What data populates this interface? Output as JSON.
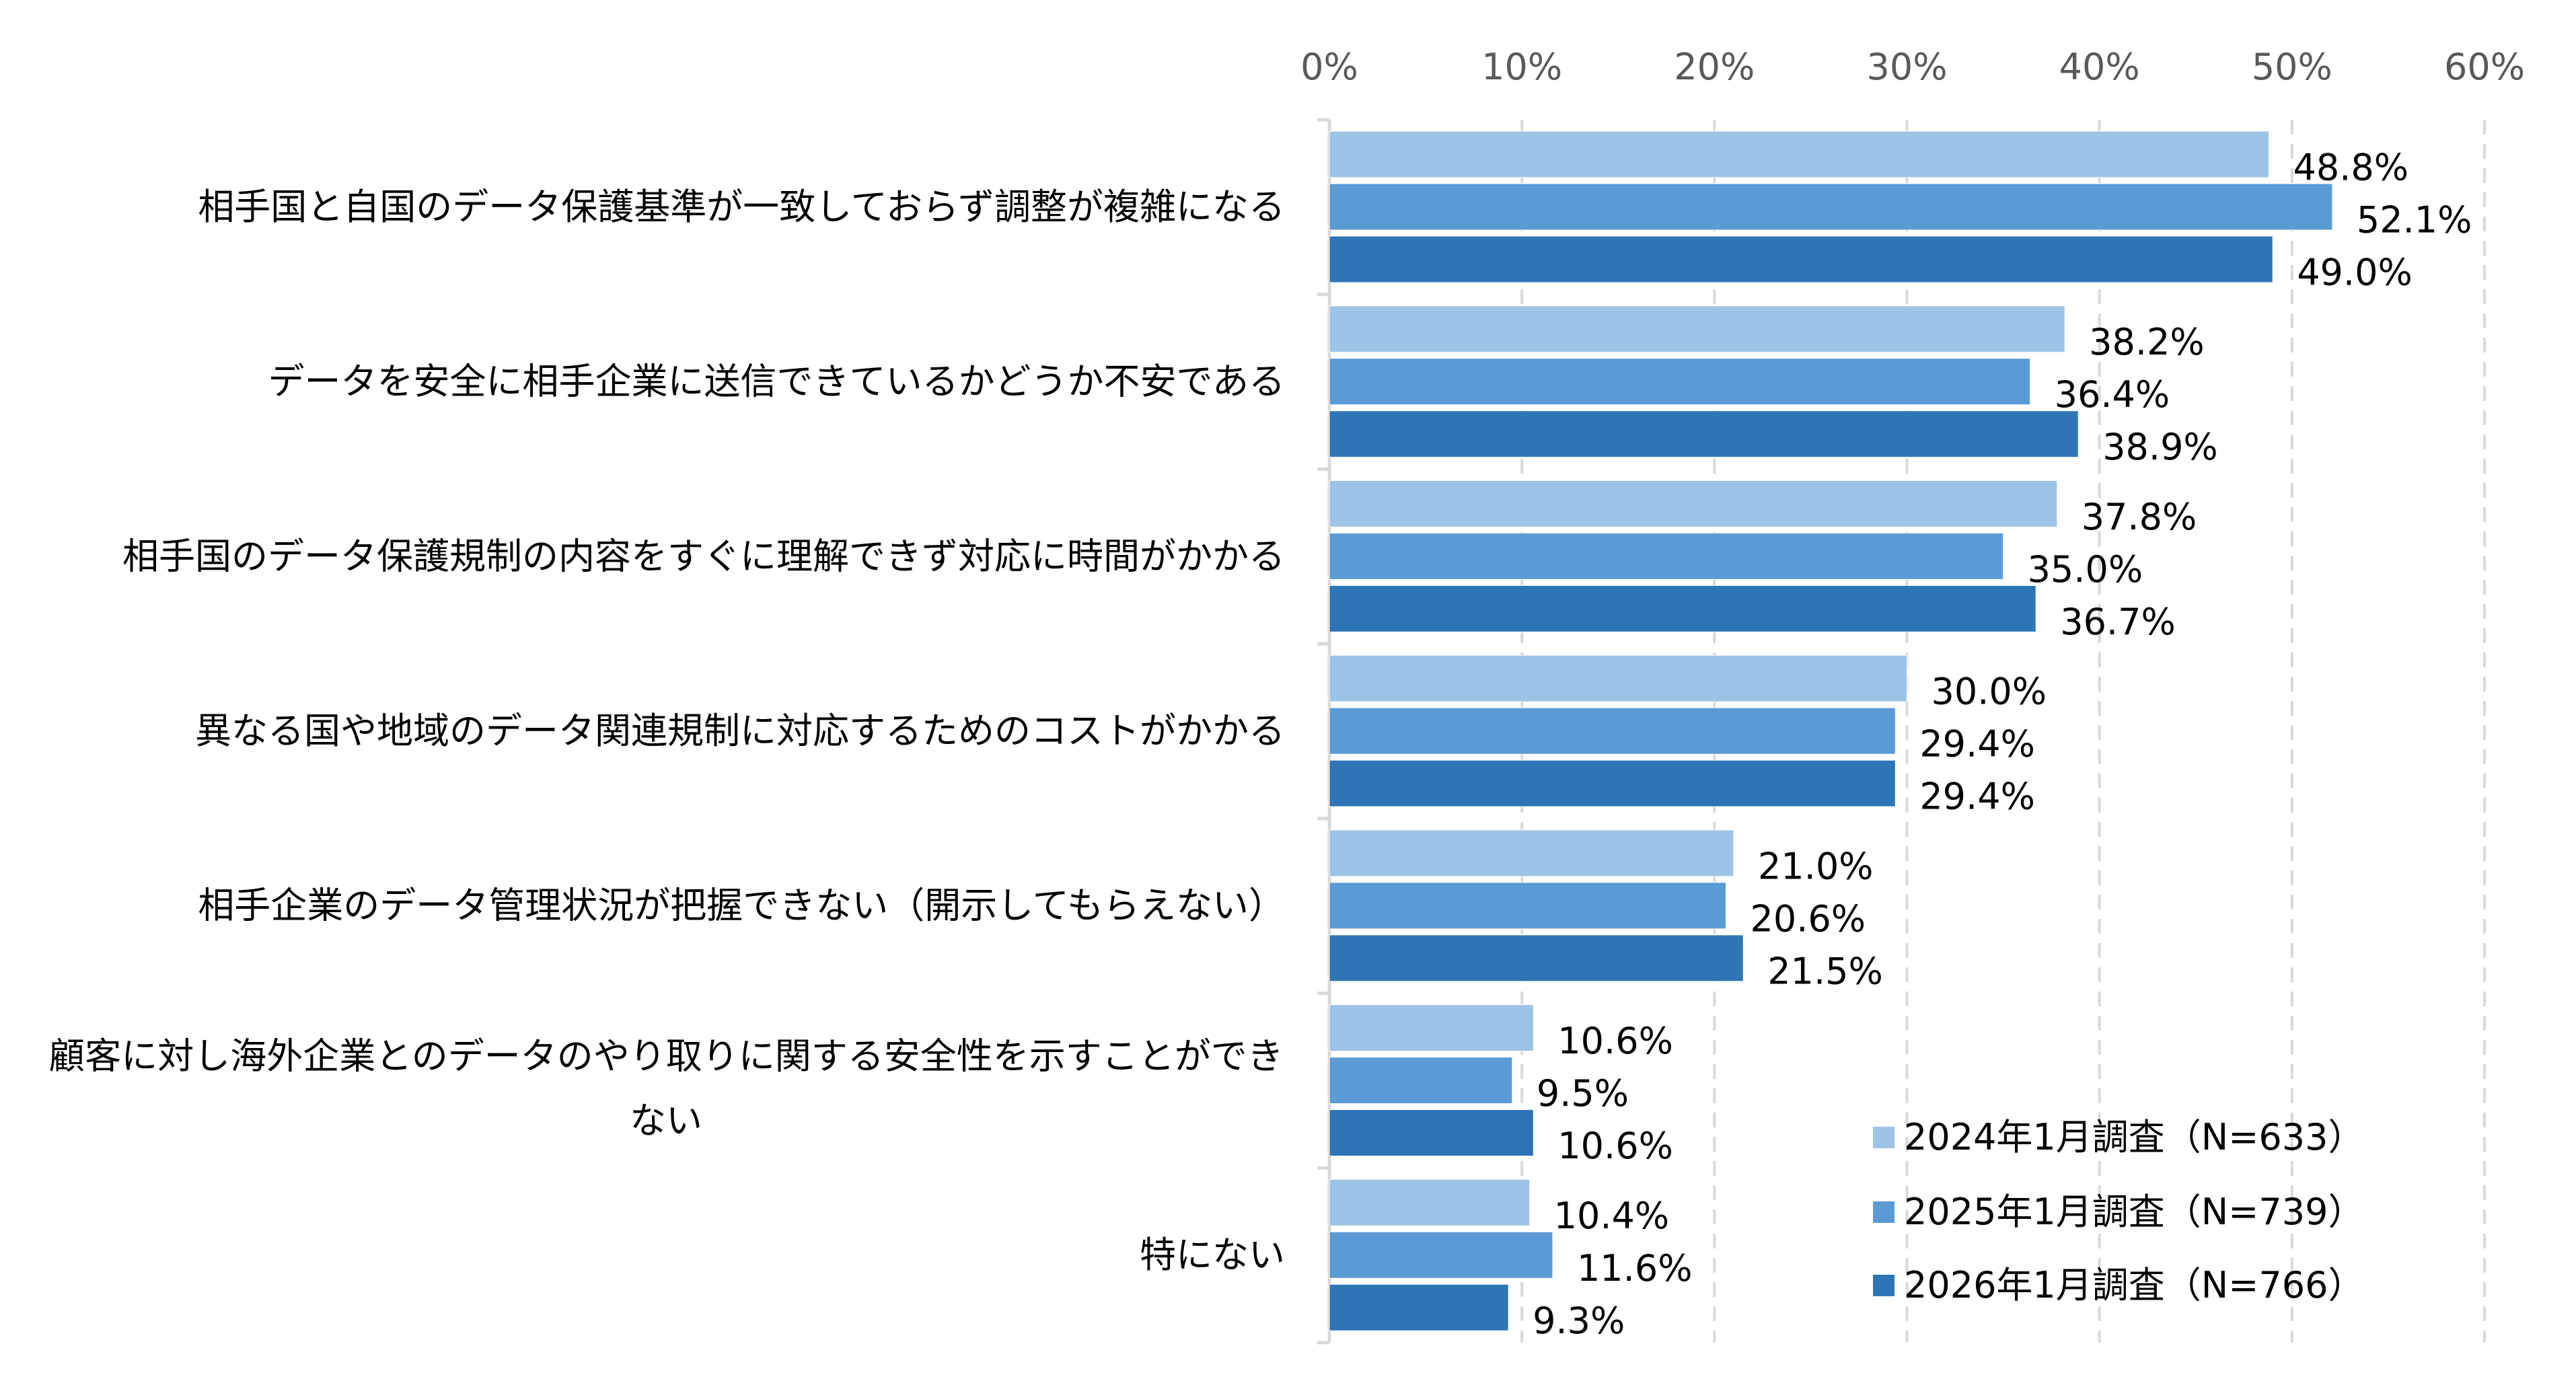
{
  "chart_data": {
    "type": "bar",
    "orientation": "horizontal",
    "categories": [
      "相手国と自国のデータ保護基準が一致しておらず調整が複雑になる",
      "データを安全に相手企業に送信できているかどうか不安である",
      "相手国のデータ保護規制の内容をすぐに理解できず対応に時間がかかる",
      "異なる国や地域のデータ関連規制に対応するためのコストがかかる",
      "相手企業のデータ管理状況が把握できない（開示してもらえない）",
      "顧客に対し海外企業とのデータのやり取りに関する安全性を示すことができない",
      "特にない"
    ],
    "series": [
      {
        "name": "2024年1月調査（N=633）",
        "color": "#9DC3E6",
        "values": [
          48.8,
          38.2,
          37.8,
          30.0,
          21.0,
          10.6,
          10.4
        ]
      },
      {
        "name": "2025年1月調査（N=739）",
        "color": "#5B9BD5",
        "values": [
          52.1,
          36.4,
          35.0,
          29.4,
          20.6,
          9.5,
          11.6
        ]
      },
      {
        "name": "2026年1月調査（N=766）",
        "color": "#2E75B6",
        "values": [
          49.0,
          38.9,
          36.7,
          29.4,
          21.5,
          10.6,
          9.3
        ]
      }
    ],
    "xlim": [
      0,
      60
    ],
    "xticks": [
      "0%",
      "10%",
      "20%",
      "30%",
      "40%",
      "50%",
      "60%"
    ],
    "tick_values": [
      0,
      10,
      20,
      30,
      40,
      50,
      60
    ],
    "axis_position": "top",
    "grid": "vertical dashed",
    "legend_position": "bottom-right",
    "value_format": "percent-1-decimal"
  }
}
